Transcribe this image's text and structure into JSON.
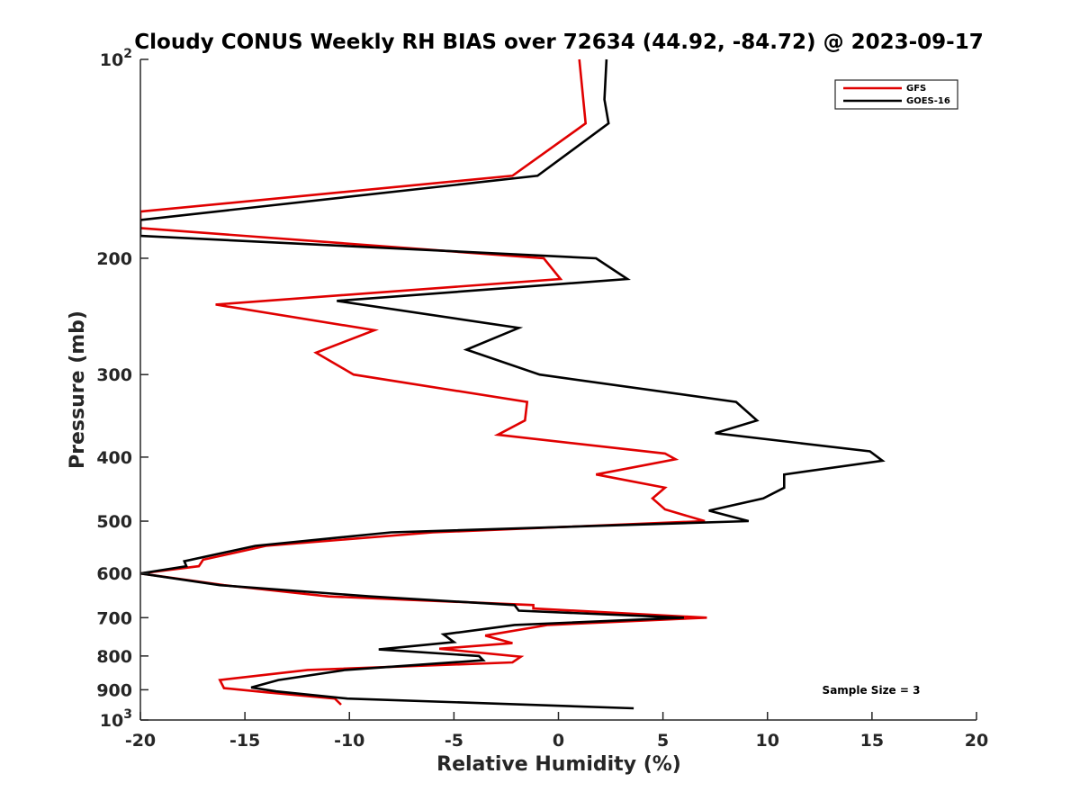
{
  "chart_data": {
    "type": "line",
    "title": "Cloudy CONUS Weekly RH BIAS over 72634 (44.92, -84.72) @ 2023-09-17",
    "xlabel": "Relative Humidity (%)",
    "ylabel": "Pressure (mb)",
    "xlim": [
      -20,
      20
    ],
    "ylim": [
      100,
      1000
    ],
    "y_scale": "log",
    "y_reversed": true,
    "x_ticks": [
      "-20",
      "-15",
      "-10",
      "-5",
      "0",
      "5",
      "10",
      "15",
      "20"
    ],
    "y_ticks": [
      {
        "value": 100,
        "base": "10",
        "exp": "2"
      },
      {
        "value": 200,
        "label": "200"
      },
      {
        "value": 300,
        "label": "300"
      },
      {
        "value": 400,
        "label": "400"
      },
      {
        "value": 500,
        "label": "500"
      },
      {
        "value": 600,
        "label": "600"
      },
      {
        "value": 700,
        "label": "700"
      },
      {
        "value": 800,
        "label": "800"
      },
      {
        "value": 900,
        "label": "900"
      },
      {
        "value": 1000,
        "base": "10",
        "exp": "3"
      }
    ],
    "grid": false,
    "legend_position": "top-right",
    "annotation": "Sample Size = 3",
    "series": [
      {
        "name": "GFS",
        "color": "#e00000",
        "points": [
          [
            1.0,
            100
          ],
          [
            1.3,
            125
          ],
          [
            -2.2,
            150
          ],
          [
            -20.0,
            170
          ],
          [
            -20.0,
            180
          ],
          [
            -0.7,
            200
          ],
          [
            0.1,
            215
          ],
          [
            -16.4,
            235
          ],
          [
            -8.8,
            257
          ],
          [
            -11.6,
            278
          ],
          [
            -9.8,
            300
          ],
          [
            -1.5,
            330
          ],
          [
            -1.6,
            352
          ],
          [
            -2.9,
            370
          ],
          [
            5.1,
            395
          ],
          [
            5.6,
            403
          ],
          [
            1.8,
            425
          ],
          [
            5.1,
            445
          ],
          [
            4.5,
            462
          ],
          [
            5.1,
            480
          ],
          [
            7.0,
            500
          ],
          [
            -6.0,
            520
          ],
          [
            -14.0,
            545
          ],
          [
            -17.0,
            572
          ],
          [
            -17.2,
            585
          ],
          [
            -20.0,
            600
          ],
          [
            -16.0,
            625
          ],
          [
            -11.0,
            650
          ],
          [
            -1.2,
            670
          ],
          [
            -1.2,
            678
          ],
          [
            7.1,
            700
          ],
          [
            -0.5,
            718
          ],
          [
            -3.5,
            745
          ],
          [
            -2.2,
            765
          ],
          [
            -5.7,
            780
          ],
          [
            -1.8,
            802
          ],
          [
            -2.2,
            818
          ],
          [
            -12.0,
            840
          ],
          [
            -16.2,
            870
          ],
          [
            -16.0,
            895
          ],
          [
            -14.0,
            908
          ],
          [
            -10.7,
            928
          ],
          [
            -10.4,
            948
          ]
        ]
      },
      {
        "name": "GOES-16",
        "color": "#000000",
        "points": [
          [
            2.3,
            100
          ],
          [
            2.2,
            115
          ],
          [
            2.4,
            125
          ],
          [
            -1.0,
            150
          ],
          [
            -20.0,
            175
          ],
          [
            -20.0,
            185
          ],
          [
            1.8,
            200
          ],
          [
            3.3,
            215
          ],
          [
            -10.6,
            232
          ],
          [
            -1.9,
            255
          ],
          [
            -4.4,
            275
          ],
          [
            -0.9,
            300
          ],
          [
            8.5,
            330
          ],
          [
            9.5,
            352
          ],
          [
            7.5,
            368
          ],
          [
            14.9,
            392
          ],
          [
            15.5,
            405
          ],
          [
            10.8,
            425
          ],
          [
            10.8,
            445
          ],
          [
            9.8,
            462
          ],
          [
            7.2,
            482
          ],
          [
            9.1,
            500
          ],
          [
            -8.0,
            520
          ],
          [
            -14.5,
            545
          ],
          [
            -17.9,
            575
          ],
          [
            -17.8,
            585
          ],
          [
            -20.0,
            600
          ],
          [
            -16.2,
            625
          ],
          [
            -9.0,
            650
          ],
          [
            -2.1,
            670
          ],
          [
            -1.9,
            683
          ],
          [
            6.0,
            700
          ],
          [
            -2.1,
            718
          ],
          [
            -5.5,
            742
          ],
          [
            -5.0,
            762
          ],
          [
            -8.6,
            782
          ],
          [
            -3.8,
            800
          ],
          [
            -3.6,
            812
          ],
          [
            -10.2,
            840
          ],
          [
            -13.4,
            870
          ],
          [
            -14.7,
            893
          ],
          [
            -13.5,
            905
          ],
          [
            -10.1,
            928
          ],
          [
            3.6,
            960
          ]
        ]
      }
    ]
  }
}
